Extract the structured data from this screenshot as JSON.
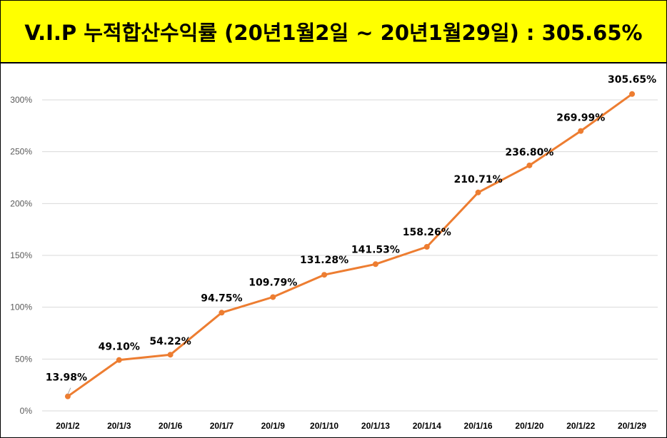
{
  "header": {
    "title": "V.I.P 누적합산수익률 (20년1월2일 ~ 20년1월29일) : 305.65%"
  },
  "colors": {
    "title_background": "#ffff00",
    "line": "#ed7d31",
    "gridline": "#d9d9d9"
  },
  "chart_data": {
    "type": "line",
    "title": "",
    "xlabel": "",
    "ylabel": "",
    "ylim": [
      0,
      300
    ],
    "y_ticks": [
      "0%",
      "50%",
      "100%",
      "150%",
      "200%",
      "250%",
      "300%"
    ],
    "y_tick_values": [
      0,
      50,
      100,
      150,
      200,
      250,
      300
    ],
    "grid": "horizontal",
    "legend": "none",
    "categories": [
      "20/1/2",
      "20/1/3",
      "20/1/6",
      "20/1/7",
      "20/1/9",
      "20/1/10",
      "20/1/13",
      "20/1/14",
      "20/1/16",
      "20/1/20",
      "20/1/22",
      "20/1/29"
    ],
    "values": [
      13.98,
      49.1,
      54.22,
      94.75,
      109.79,
      131.28,
      141.53,
      158.26,
      210.71,
      236.8,
      269.99,
      305.65
    ],
    "data_labels": [
      "13.98%",
      "49.10%",
      "54.22%",
      "94.75%",
      "109.79%",
      "131.28%",
      "141.53%",
      "158.26%",
      "210.71%",
      "236.80%",
      "269.99%",
      "305.65%"
    ]
  }
}
